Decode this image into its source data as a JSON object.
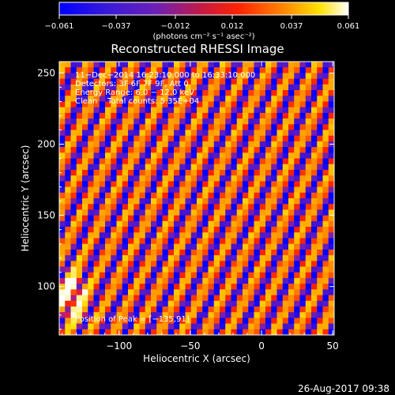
{
  "chart_data": {
    "type": "heatmap",
    "title": "Reconstructed RHESSI Image",
    "xlabel": "Heliocentric X (arcsec)",
    "ylabel": "Heliocentric Y (arcsec)",
    "xlim": [
      -142,
      51
    ],
    "ylim": [
      66,
      258
    ],
    "x_ticks": [
      -100,
      -50,
      0,
      50
    ],
    "x_tick_labels": [
      "−100",
      "−50",
      "0",
      "50"
    ],
    "y_ticks": [
      100,
      150,
      200,
      250
    ],
    "y_tick_labels": [
      "100",
      "150",
      "200",
      "250"
    ],
    "colorbar": {
      "range": [
        -0.061,
        0.061
      ],
      "ticks": [
        -0.061,
        -0.037,
        -0.012,
        0.012,
        0.037,
        0.061
      ],
      "tick_labels": [
        "−0.061",
        "−0.037",
        "−0.012",
        "0.012",
        "0.037",
        "0.061"
      ],
      "units": "(photons cm⁻² s⁻¹ asec⁻²)",
      "colormap": [
        "#0000ff",
        "#6a1fb8",
        "#c81a70",
        "#ff2200",
        "#ff8a00",
        "#ffe200",
        "#ffffff"
      ]
    },
    "annotations": [
      "11−Dec−2014 16:23:10.000 to 16:33:10.000",
      "Detectors: 3F 6F 7F 9F, Att 0",
      "Energy Range: 6.0 − 12.0 keV",
      "Clean    Total counts: 5.35E+04"
    ],
    "peak_label": "Position of Peak = [−135,91]",
    "pattern": {
      "description": "diagonal fringe pattern of alternating positive/negative intensity",
      "stripe_count": 12,
      "peak_value": 0.061,
      "peak_position": [
        -135,
        91
      ]
    }
  },
  "footer": {
    "timestamp": "26-Aug-2017 09:38"
  }
}
